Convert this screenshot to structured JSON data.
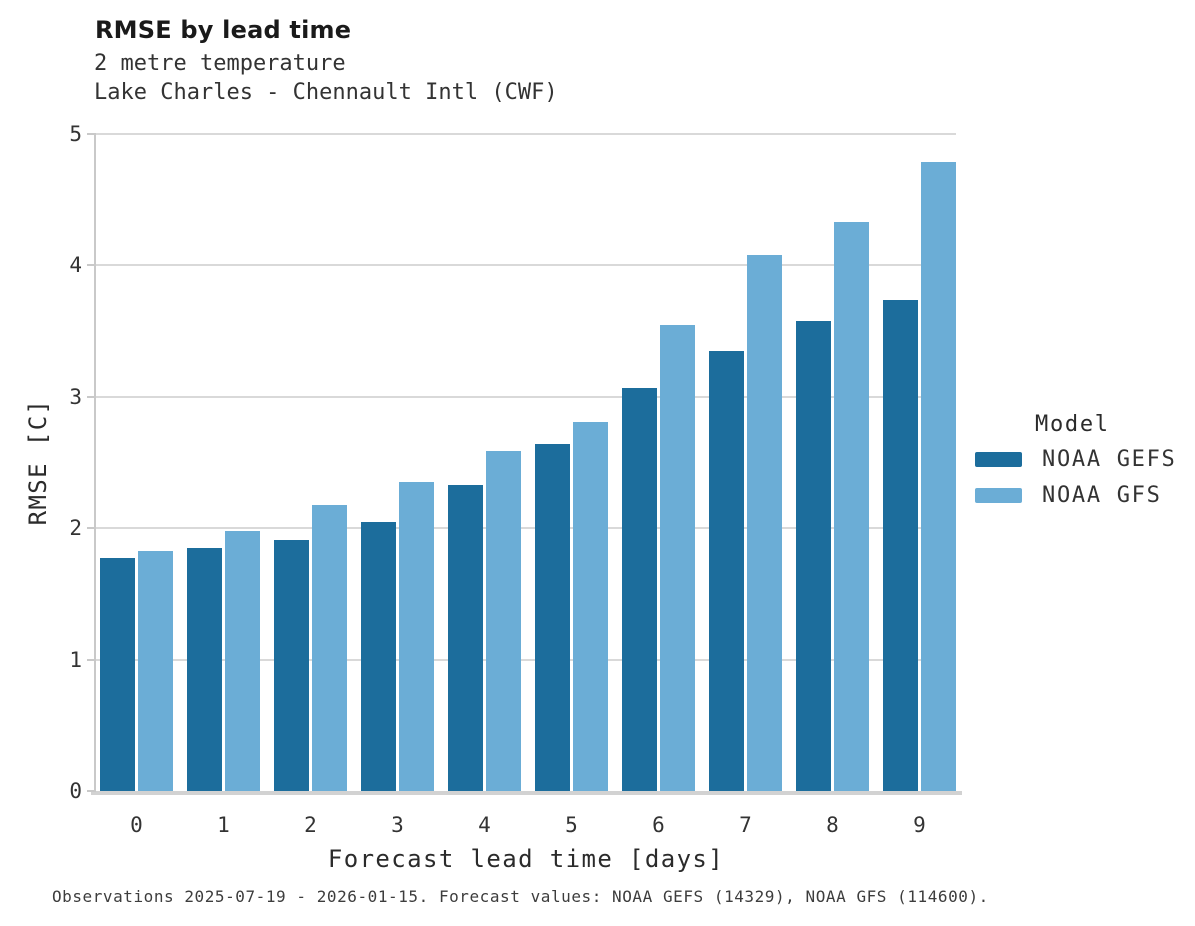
{
  "header": {
    "title": "RMSE by lead time",
    "subtitle": "2 metre temperature",
    "station": "Lake Charles - Chennault Intl (CWF)"
  },
  "chart_data": {
    "type": "bar",
    "title": "RMSE by lead time",
    "subtitle": "2 metre temperature",
    "location": "Lake Charles - Chennault Intl (CWF)",
    "categories": [
      "0",
      "1",
      "2",
      "3",
      "4",
      "5",
      "6",
      "7",
      "8",
      "9"
    ],
    "series": [
      {
        "name": "NOAA GEFS",
        "color": "#1c6d9c",
        "values": [
          1.77,
          1.85,
          1.91,
          2.05,
          2.33,
          2.64,
          3.07,
          3.35,
          3.58,
          3.74
        ]
      },
      {
        "name": "NOAA GFS",
        "color": "#6badd6",
        "values": [
          1.83,
          1.98,
          2.18,
          2.35,
          2.59,
          2.81,
          3.55,
          4.08,
          4.33,
          4.79
        ]
      }
    ],
    "xlabel": "Forecast lead time [days]",
    "ylabel": "RMSE [C]",
    "ylim": [
      0,
      5
    ],
    "yticks": [
      0,
      1,
      2,
      3,
      4,
      5
    ],
    "grid": "horizontal",
    "legend_title": "Model",
    "legend_position": "right"
  },
  "footer": {
    "caption": "Observations 2025-07-19 - 2026-01-15. Forecast values: NOAA GEFS (14329), NOAA GFS (114600)."
  },
  "colors": {
    "noaa_gefs": "#1c6d9c",
    "noaa_gfs": "#6badd6",
    "gridline": "#d9d9d9",
    "axis": "#c9c9c9",
    "text": "#333333"
  }
}
